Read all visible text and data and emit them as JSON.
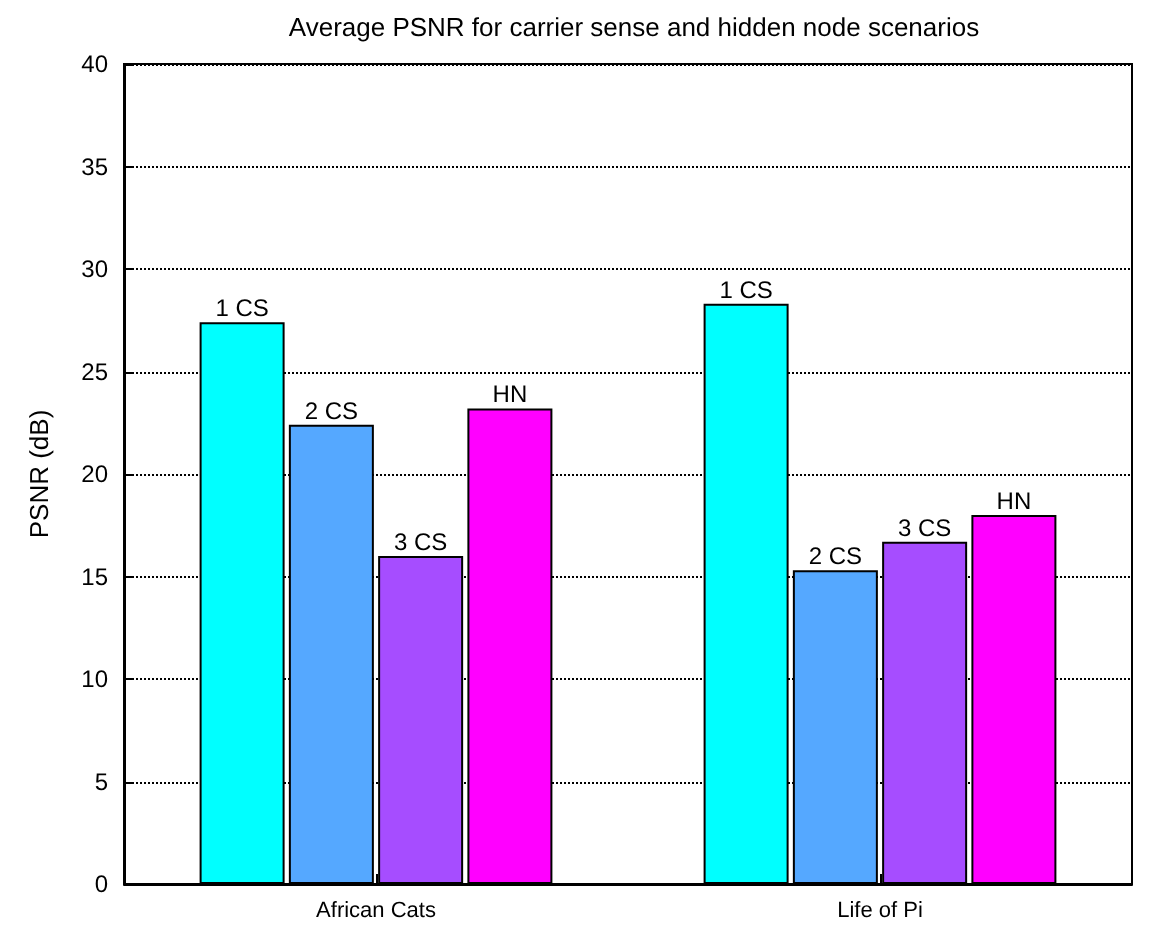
{
  "chart_data": {
    "type": "bar",
    "title": "Average PSNR for carrier sense and hidden node scenarios",
    "ylabel": "PSNR (dB)",
    "categories": [
      "African Cats",
      "Life of Pi"
    ],
    "series": [
      {
        "name": "1 CS",
        "color": "#00ffff",
        "values": [
          27.4,
          28.3
        ]
      },
      {
        "name": "2 CS",
        "color": "#55a8ff",
        "values": [
          22.4,
          15.3
        ]
      },
      {
        "name": "3 CS",
        "color": "#a64dff",
        "values": [
          16.0,
          16.7
        ]
      },
      {
        "name": "HN",
        "color": "#ff00ff",
        "values": [
          23.2,
          18.0
        ]
      }
    ],
    "ylim": [
      0,
      40
    ],
    "yticks": [
      0,
      5,
      10,
      15,
      20,
      25,
      30,
      35,
      40
    ],
    "grid": "y",
    "legend": false
  }
}
